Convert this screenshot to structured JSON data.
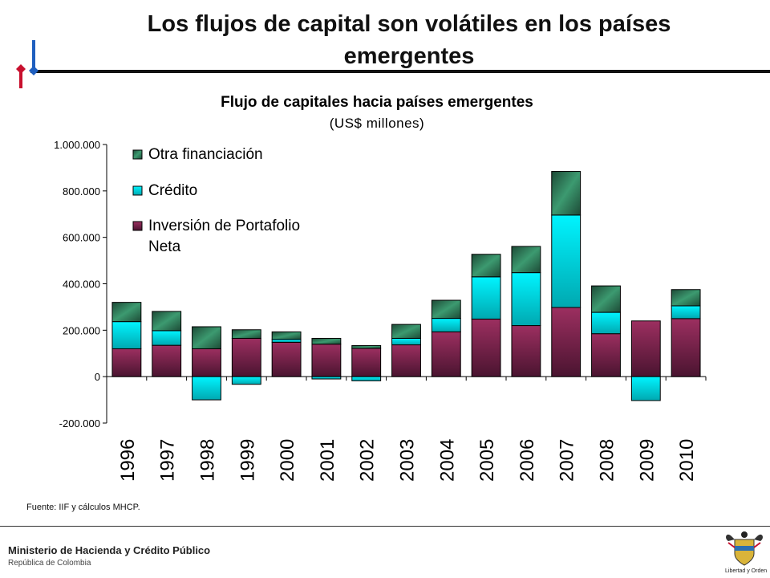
{
  "slide": {
    "title_line1": "Los flujos de capital son volátiles en los países",
    "title_line2": "emergentes"
  },
  "footer": {
    "source": "Fuente: IIF  y cálculos MHCP.",
    "ministry": "Ministerio de Hacienda y Crédito Público",
    "republic": "República de Colombia",
    "coat_motto": "Libertad y Orden"
  },
  "colors": {
    "otra": "#2e7d5b",
    "credito": "#00e0e8",
    "portafolio": "#8b2a56",
    "logo_red": "#c8102e",
    "logo_blue": "#1f5fbf"
  },
  "chart_data": {
    "type": "bar",
    "stacked": true,
    "title": "Flujo de capitales hacia países emergentes",
    "subtitle": "(US$ millones)",
    "categories": [
      "1996",
      "1997",
      "1998",
      "1999",
      "2000",
      "2001",
      "2002",
      "2003",
      "2004",
      "2005",
      "2006",
      "2007",
      "2008",
      "2009",
      "2010"
    ],
    "series": [
      {
        "name": "Inversión de Portafolio Neta",
        "key": "portafolio",
        "values": [
          120000,
          135000,
          120000,
          165000,
          148000,
          140000,
          122000,
          137000,
          193000,
          248000,
          220000,
          298000,
          185000,
          240000,
          250000
        ]
      },
      {
        "name": "Crédito",
        "key": "credito",
        "values": [
          117000,
          63000,
          -100000,
          -33000,
          13000,
          -10000,
          -18000,
          28000,
          58000,
          182000,
          228000,
          398000,
          92000,
          -103000,
          55000
        ]
      },
      {
        "name": "Otra financiación",
        "key": "otra",
        "values": [
          83000,
          83000,
          95000,
          37000,
          32000,
          25000,
          12000,
          60000,
          78000,
          97000,
          113000,
          188000,
          114000,
          0,
          70000
        ]
      }
    ],
    "legend": [
      "Otra financiación",
      "Crédito",
      "Inversión de Portafolio Neta"
    ],
    "legend_position": "top-left",
    "ylim": [
      -200000,
      1000000
    ],
    "yticks": [
      -200000,
      0,
      200000,
      400000,
      600000,
      800000,
      1000000
    ],
    "ytick_labels": [
      "-200.000",
      "0",
      "200.000",
      "400.000",
      "600.000",
      "800.000",
      "1.000.000"
    ],
    "grid": false
  }
}
